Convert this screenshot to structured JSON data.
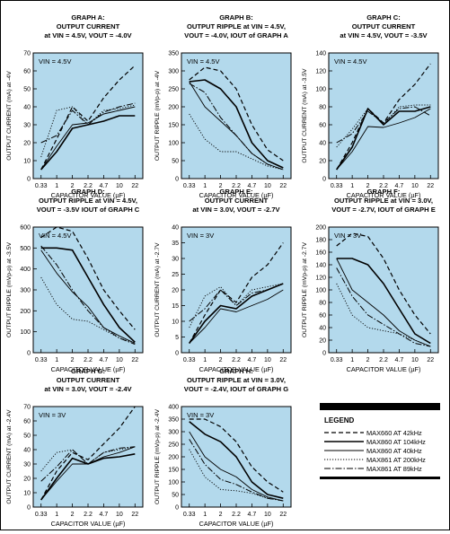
{
  "legend": {
    "title": "LEGEND",
    "entries": [
      {
        "label": "MAX660 AT 42kHz",
        "dash": "5,3",
        "width": 1.2
      },
      {
        "label": "MAX860 AT 104kHz",
        "dash": "none",
        "width": 1.6
      },
      {
        "label": "MAX860 AT 40kHz",
        "dash": "none",
        "width": 0.9
      },
      {
        "label": "MAX861 AT 200kHz",
        "dash": "1.2,1.8",
        "width": 0.9
      },
      {
        "label": "MAX861 AT 89kHz",
        "dash": "7,2,1.5,2",
        "width": 1.0
      }
    ]
  },
  "colors": {
    "plot_bg": "#b3d9ec",
    "line": "#000000"
  },
  "chart_data": [
    {
      "type": "line",
      "title_lines": [
        "GRAPH A:",
        "OUTPUT CURRENT",
        "at VIN = 4.5V, VOUT = -4.0V"
      ],
      "ylabel": "OUTPUT CURRENT (mA) at -4V",
      "xlabel": "CAPACITOR VALUE (µF)",
      "annotation": "VIN = 4.5V",
      "x": [
        "0.33",
        "1",
        "2",
        "2.2",
        "4.7",
        "10",
        "22"
      ],
      "ylim": [
        0,
        70
      ],
      "yticks": [
        0,
        10,
        20,
        30,
        40,
        50,
        60,
        70
      ],
      "series": [
        {
          "values": [
            5,
            22,
            40,
            32,
            45,
            55,
            63
          ]
        },
        {
          "values": [
            5,
            15,
            28,
            30,
            32,
            35,
            35
          ]
        },
        {
          "values": [
            5,
            18,
            30,
            31,
            36,
            38,
            40
          ]
        },
        {
          "values": [
            12,
            38,
            40,
            30,
            38,
            39,
            41
          ]
        },
        {
          "values": [
            20,
            24,
            38,
            30,
            37,
            40,
            42
          ]
        }
      ]
    },
    {
      "type": "line",
      "title_lines": [
        "GRAPH B:",
        "OUTPUT RIPPLE at VIN = 4.5V,",
        "VOUT = -4.0V, IOUT of GRAPH A"
      ],
      "ylabel": "OUTPUT RIPPLE (mVp-p) at -4V",
      "xlabel": "CAPACITOR VALUE (µF)",
      "annotation": "VIN = 4.5V",
      "x": [
        "0.33",
        "1",
        "2",
        "2.2",
        "4.7",
        "10",
        "22"
      ],
      "ylim": [
        0,
        350
      ],
      "yticks": [
        0,
        50,
        100,
        150,
        200,
        250,
        300,
        350
      ],
      "series": [
        {
          "values": [
            275,
            310,
            300,
            250,
            150,
            80,
            50
          ]
        },
        {
          "values": [
            270,
            275,
            250,
            200,
            100,
            50,
            30
          ]
        },
        {
          "values": [
            270,
            200,
            160,
            120,
            70,
            40,
            25
          ]
        },
        {
          "values": [
            180,
            110,
            75,
            75,
            55,
            35,
            25
          ]
        },
        {
          "values": [
            265,
            240,
            170,
            120,
            70,
            40,
            25
          ]
        }
      ]
    },
    {
      "type": "line",
      "title_lines": [
        "GRAPH C:",
        "OUTPUT CURRENT",
        "at VIN = 4.5V, VOUT = -3.5V"
      ],
      "ylabel": "OUTPUT CURRENT (mA) at -3.5V",
      "xlabel": "CAPACITOR VALUE (µF)",
      "annotation": "VIN = 4.5V",
      "x": [
        "0.33",
        "1",
        "2",
        "2.2",
        "4.7",
        "10",
        "22"
      ],
      "ylim": [
        0,
        140
      ],
      "yticks": [
        0,
        20,
        40,
        60,
        80,
        100,
        120,
        140
      ],
      "series": [
        {
          "values": [
            10,
            40,
            78,
            62,
            88,
            105,
            128
          ]
        },
        {
          "values": [
            10,
            35,
            78,
            60,
            75,
            75,
            80
          ]
        },
        {
          "values": [
            10,
            30,
            58,
            57,
            62,
            68,
            78
          ]
        },
        {
          "values": [
            35,
            55,
            78,
            60,
            80,
            82,
            82
          ]
        },
        {
          "values": [
            40,
            50,
            75,
            62,
            78,
            80,
            70
          ]
        }
      ]
    },
    {
      "type": "line",
      "title_lines": [
        "GRAPH D:",
        "OUTPUT RIPPLE at VIN = 4.5V,",
        "VOUT = -3.5V IOUT of GRAPH C"
      ],
      "ylabel": "OUTPUT RIPPLE (mVp-p) at -3.5V",
      "xlabel": "CAPACITOR VALUE (µF)",
      "annotation": "VIN = 4.5V",
      "x": [
        "0.33",
        "1",
        "2",
        "2.2",
        "4.7",
        "10",
        "22"
      ],
      "ylim": [
        0,
        600
      ],
      "yticks": [
        0,
        100,
        200,
        300,
        400,
        500,
        600
      ],
      "series": [
        {
          "values": [
            550,
            600,
            580,
            450,
            300,
            200,
            110
          ]
        },
        {
          "values": [
            500,
            500,
            490,
            360,
            230,
            120,
            50
          ]
        },
        {
          "values": [
            490,
            380,
            290,
            220,
            120,
            80,
            45
          ]
        },
        {
          "values": [
            360,
            230,
            160,
            150,
            110,
            70,
            45
          ]
        },
        {
          "values": [
            510,
            420,
            300,
            200,
            120,
            70,
            40
          ]
        }
      ]
    },
    {
      "type": "line",
      "title_lines": [
        "GRAPH E:",
        "OUTPUT CURRENT",
        "at VIN = 3.0V, VOUT = -2.7V"
      ],
      "ylabel": "OUTPUT CURRENT (mA) at -2.7V",
      "xlabel": "CAPACITOR VALUE (µF)",
      "annotation": "VIN = 3V",
      "x": [
        "0.33",
        "1",
        "2",
        "2.2",
        "4.7",
        "10",
        "22"
      ],
      "ylim": [
        0,
        40
      ],
      "yticks": [
        0,
        5,
        10,
        15,
        20,
        25,
        30,
        35,
        40
      ],
      "series": [
        {
          "values": [
            3,
            12,
            20,
            16,
            24,
            28,
            35
          ]
        },
        {
          "values": [
            3,
            10,
            15,
            14,
            18,
            20,
            22
          ]
        },
        {
          "values": [
            3,
            8,
            14,
            13,
            15,
            17,
            20
          ]
        },
        {
          "values": [
            8,
            18,
            21,
            15,
            20,
            21,
            22
          ]
        },
        {
          "values": [
            10,
            14,
            20,
            15,
            19,
            20,
            22
          ]
        }
      ]
    },
    {
      "type": "line",
      "title_lines": [
        "GRAPH F:",
        "OUTPUT RIPPLE at VIN = 3.0V,",
        "VOUT = -2.7V, IOUT of GRAPH E"
      ],
      "ylabel": "OUTPUT RIPPLE (mVp-p) at -2.7V",
      "xlabel": "CAPACITOR VALUE (µF)",
      "annotation": "VIN = 3V",
      "x": [
        "0.33",
        "1",
        "2",
        "2.2",
        "4.7",
        "10",
        "22"
      ],
      "ylim": [
        0,
        200
      ],
      "yticks": [
        0,
        20,
        40,
        60,
        80,
        100,
        120,
        140,
        160,
        180,
        200
      ],
      "series": [
        {
          "values": [
            170,
            190,
            185,
            150,
            100,
            60,
            30
          ]
        },
        {
          "values": [
            150,
            150,
            140,
            110,
            70,
            30,
            15
          ]
        },
        {
          "values": [
            150,
            100,
            80,
            60,
            35,
            20,
            10
          ]
        },
        {
          "values": [
            110,
            60,
            40,
            35,
            30,
            20,
            10
          ]
        },
        {
          "values": [
            135,
            90,
            60,
            45,
            30,
            15,
            10
          ]
        }
      ]
    },
    {
      "type": "line",
      "title_lines": [
        "GRAPH G:",
        "OUTPUT CURRENT",
        "at VIN = 3.0V, VOUT = -2.4V"
      ],
      "ylabel": "OUTPUT CURRENT (mA) at -2.4V",
      "xlabel": "CAPACITOR VALUE (µF)",
      "annotation": "VIN = 3V",
      "x": [
        "0.33",
        "1",
        "2",
        "2.2",
        "4.7",
        "10",
        "22"
      ],
      "ylim": [
        0,
        70
      ],
      "yticks": [
        0,
        10,
        20,
        30,
        40,
        50,
        60,
        70
      ],
      "series": [
        {
          "values": [
            5,
            25,
            38,
            33,
            44,
            55,
            70
          ]
        },
        {
          "values": [
            5,
            20,
            34,
            30,
            34,
            35,
            37
          ]
        },
        {
          "values": [
            5,
            18,
            30,
            30,
            35,
            38,
            42
          ]
        },
        {
          "values": [
            25,
            38,
            40,
            30,
            38,
            40,
            42
          ]
        },
        {
          "values": [
            18,
            28,
            40,
            30,
            38,
            41,
            42
          ]
        }
      ]
    },
    {
      "type": "line",
      "title_lines": [
        "GRAPH H:",
        "OUTPUT RIPPLE at VIN = 3.0V,",
        "VOUT = -2.4V, IOUT of GRAPH G"
      ],
      "ylabel": "OUTPUT RIPPLE (mVp-p) at -2.4V",
      "xlabel": "CAPACITOR VALUE (µF)",
      "annotation": "VIN = 3V",
      "x": [
        "0.33",
        "1",
        "2",
        "2.2",
        "4.7",
        "10",
        "22"
      ],
      "ylim": [
        0,
        400
      ],
      "yticks": [
        0,
        50,
        100,
        150,
        200,
        250,
        300,
        350,
        400
      ],
      "series": [
        {
          "values": [
            350,
            350,
            320,
            260,
            160,
            100,
            60
          ]
        },
        {
          "values": [
            340,
            290,
            260,
            200,
            100,
            50,
            35
          ]
        },
        {
          "values": [
            300,
            200,
            150,
            120,
            70,
            40,
            25
          ]
        },
        {
          "values": [
            230,
            120,
            70,
            65,
            55,
            35,
            25
          ]
        },
        {
          "values": [
            270,
            170,
            110,
            90,
            60,
            35,
            25
          ]
        }
      ]
    }
  ]
}
